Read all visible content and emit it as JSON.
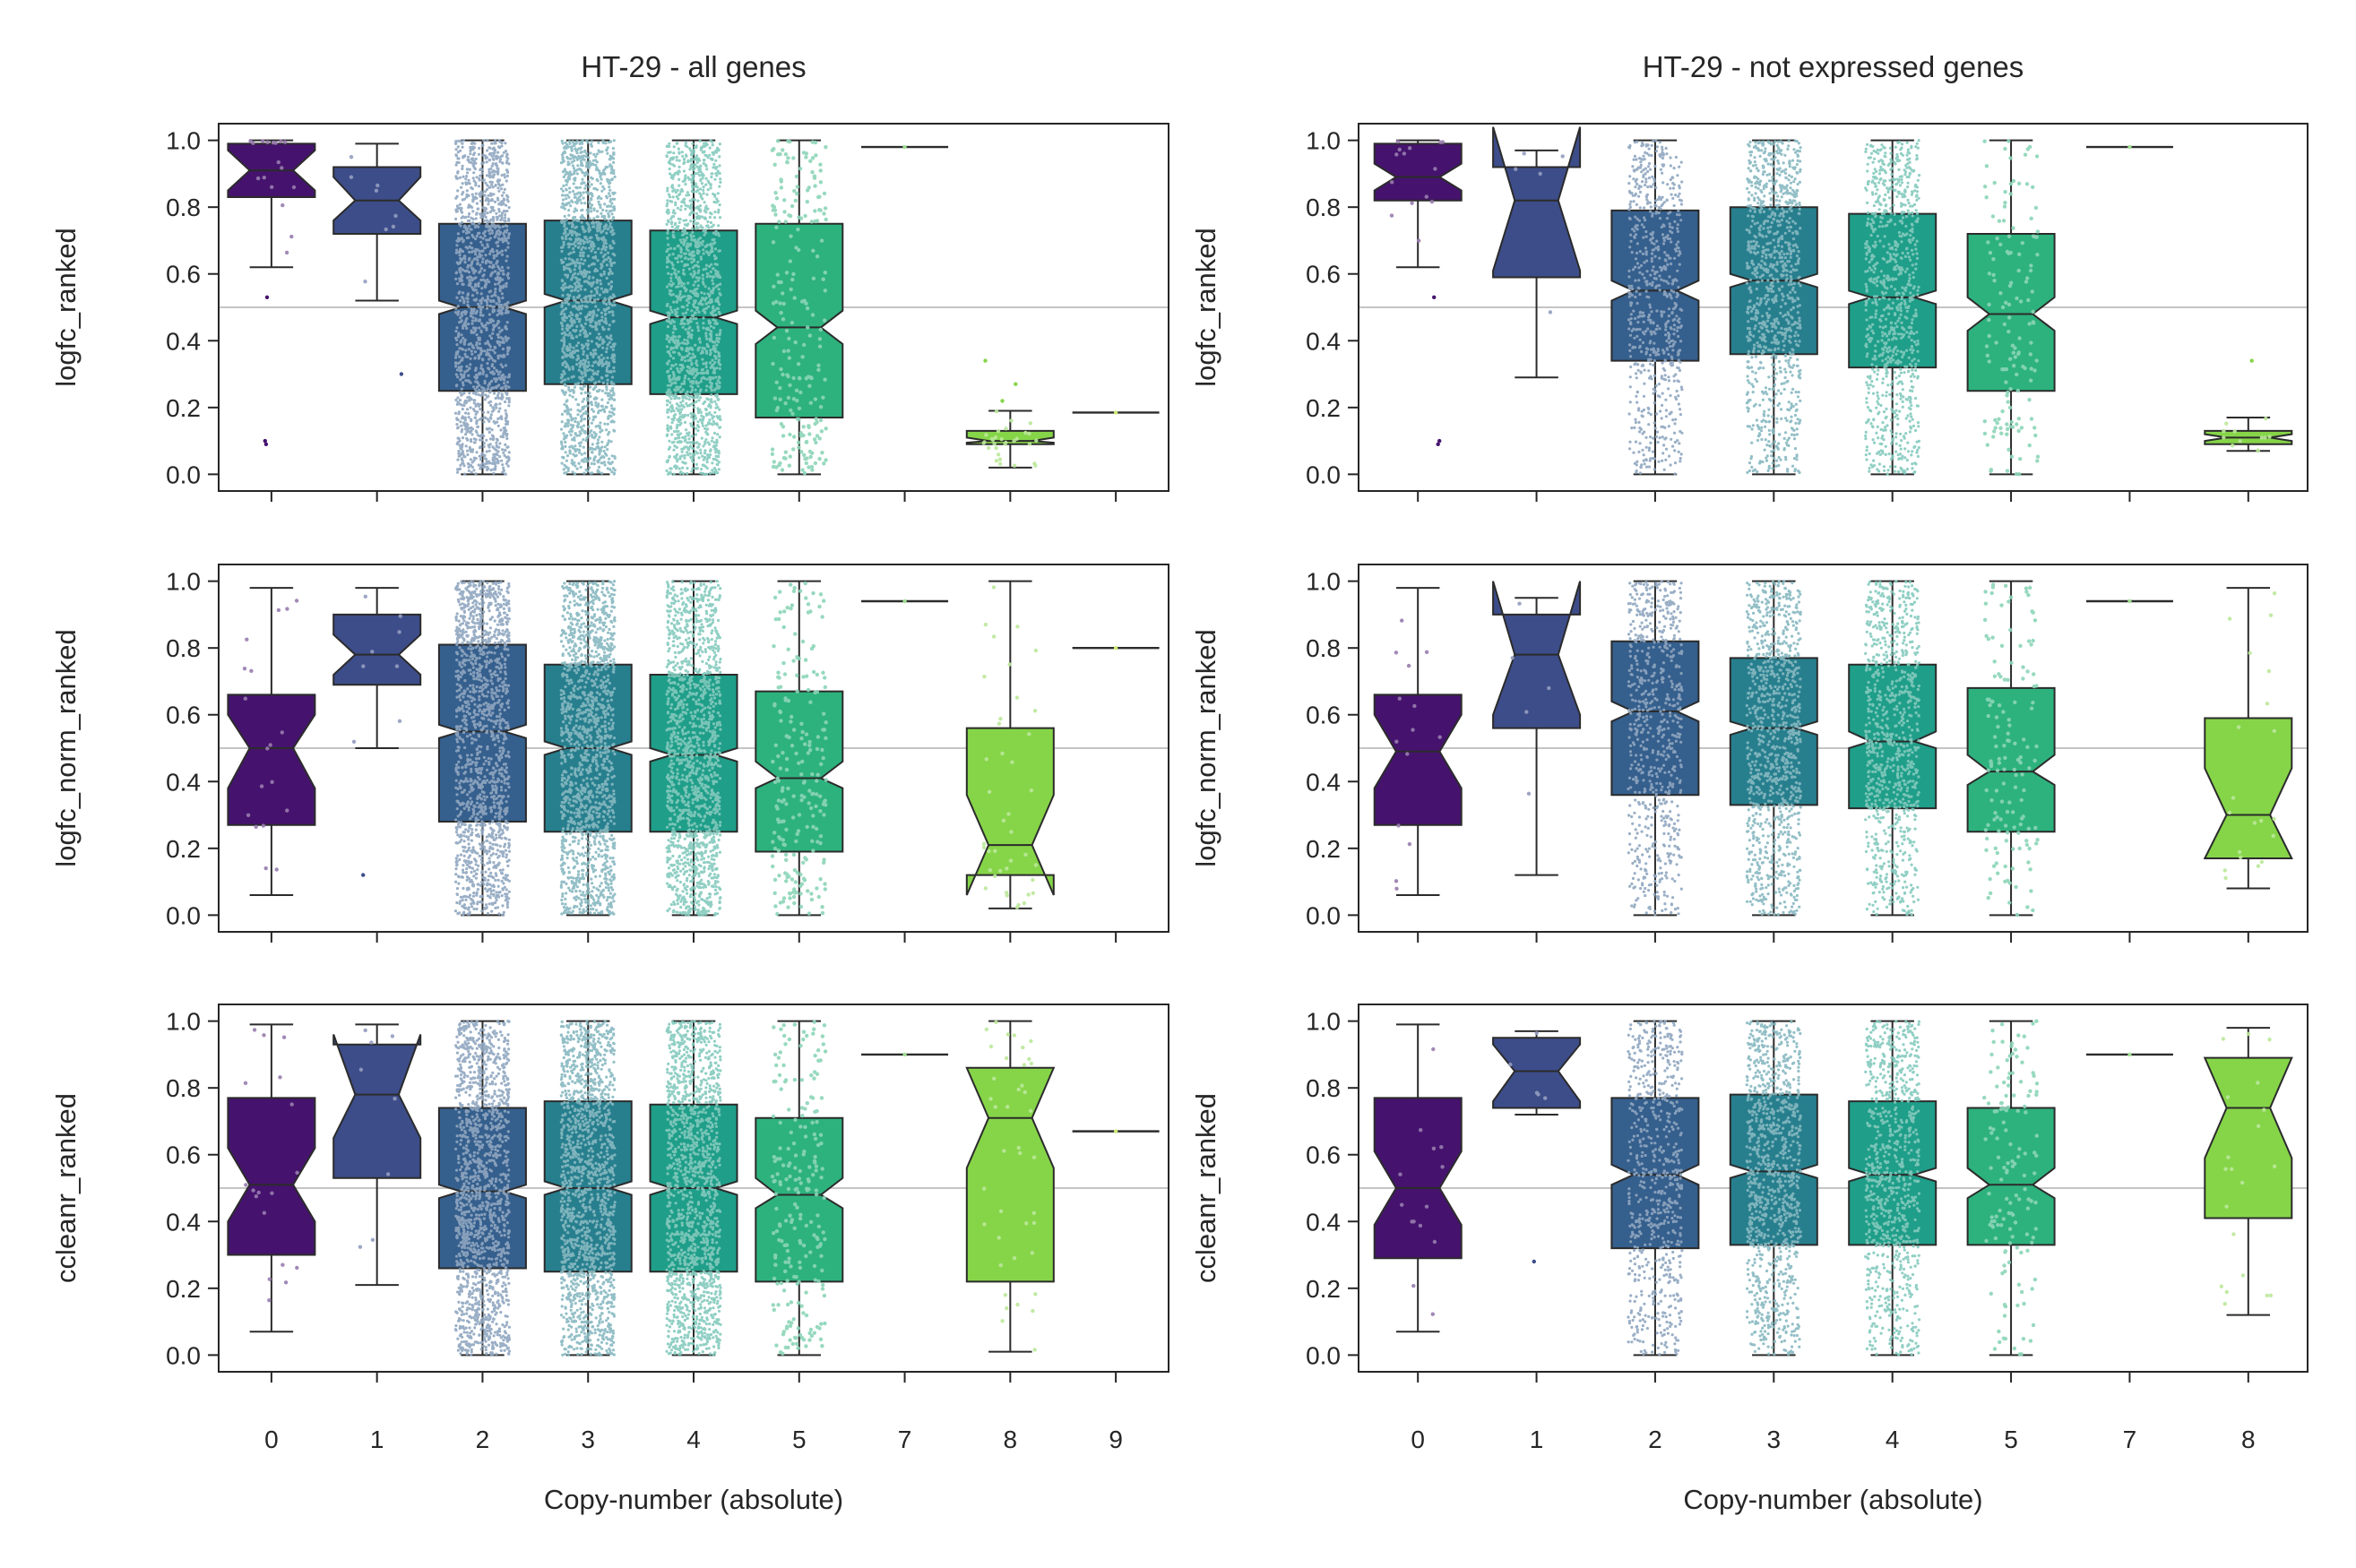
{
  "figure": {
    "palette": [
      "#45136e",
      "#3d4d8a",
      "#355f8d",
      "#277f8e",
      "#1f9e89",
      "#2db27d",
      "#6ece58",
      "#86d549",
      "#b5de2b"
    ],
    "reference_line": 0.5,
    "x_axis_label": "Copy-number (absolute)"
  },
  "chart_data": [
    {
      "type": "box",
      "panel": "row1-left",
      "title": "HT-29 - all genes",
      "ylabel": "logfc_ranked",
      "xlabel": "",
      "ylim": [
        -0.05,
        1.05
      ],
      "yticks": [
        "0.0",
        "0.2",
        "0.4",
        "0.6",
        "0.8",
        "1.0"
      ],
      "categories": [
        "0",
        "1",
        "2",
        "3",
        "4",
        "5",
        "7",
        "8",
        "9"
      ],
      "boxes": [
        {
          "cat": "0",
          "q1": 0.83,
          "med": 0.91,
          "q3": 0.99,
          "wlo": 0.62,
          "whi": 1.0,
          "nlo": 0.85,
          "nhi": 0.97,
          "n": 18,
          "outliers": [
            0.1,
            0.09,
            0.53
          ]
        },
        {
          "cat": "1",
          "q1": 0.72,
          "med": 0.82,
          "q3": 0.92,
          "wlo": 0.52,
          "whi": 0.99,
          "nlo": 0.76,
          "nhi": 0.89,
          "n": 8,
          "outliers": [
            0.3
          ]
        },
        {
          "cat": "2",
          "q1": 0.25,
          "med": 0.5,
          "q3": 0.75,
          "wlo": 0.0,
          "whi": 1.0,
          "nlo": 0.48,
          "nhi": 0.52,
          "n": 1500
        },
        {
          "cat": "3",
          "q1": 0.27,
          "med": 0.52,
          "q3": 0.76,
          "wlo": 0.0,
          "whi": 1.0,
          "nlo": 0.5,
          "nhi": 0.54,
          "n": 1500
        },
        {
          "cat": "4",
          "q1": 0.24,
          "med": 0.47,
          "q3": 0.73,
          "wlo": 0.0,
          "whi": 1.0,
          "nlo": 0.45,
          "nhi": 0.49,
          "n": 1500
        },
        {
          "cat": "5",
          "q1": 0.17,
          "med": 0.44,
          "q3": 0.75,
          "wlo": 0.0,
          "whi": 1.0,
          "nlo": 0.39,
          "nhi": 0.49,
          "n": 220
        },
        {
          "cat": "7",
          "q1": 0.98,
          "med": 0.98,
          "q3": 0.98,
          "wlo": 0.98,
          "whi": 0.98,
          "n": 1
        },
        {
          "cat": "8",
          "q1": 0.09,
          "med": 0.1,
          "q3": 0.13,
          "wlo": 0.02,
          "whi": 0.19,
          "nlo": 0.095,
          "nhi": 0.11,
          "n": 30,
          "outliers": [
            0.34,
            0.27,
            0.22
          ]
        },
        {
          "cat": "9",
          "q1": 0.185,
          "med": 0.185,
          "q3": 0.185,
          "wlo": 0.185,
          "whi": 0.185,
          "n": 1
        }
      ]
    },
    {
      "type": "box",
      "panel": "row1-right",
      "title": "HT-29 - not expressed genes",
      "ylabel": "logfc_ranked",
      "xlabel": "",
      "ylim": [
        -0.05,
        1.05
      ],
      "yticks": [
        "0.0",
        "0.2",
        "0.4",
        "0.6",
        "0.8",
        "1.0"
      ],
      "categories": [
        "0",
        "1",
        "2",
        "3",
        "4",
        "5",
        "7",
        "8"
      ],
      "boxes": [
        {
          "cat": "0",
          "q1": 0.82,
          "med": 0.89,
          "q3": 0.99,
          "wlo": 0.62,
          "whi": 1.0,
          "nlo": 0.85,
          "nhi": 0.93,
          "n": 14,
          "outliers": [
            0.1,
            0.09,
            0.53
          ]
        },
        {
          "cat": "1",
          "q1": 0.59,
          "med": 0.82,
          "q3": 0.92,
          "wlo": 0.29,
          "whi": 0.97,
          "nlo": 0.61,
          "nhi": 1.04,
          "n": 5
        },
        {
          "cat": "2",
          "q1": 0.34,
          "med": 0.55,
          "q3": 0.79,
          "wlo": 0.0,
          "whi": 1.0,
          "nlo": 0.52,
          "nhi": 0.58,
          "n": 700
        },
        {
          "cat": "3",
          "q1": 0.36,
          "med": 0.58,
          "q3": 0.8,
          "wlo": 0.0,
          "whi": 1.0,
          "nlo": 0.56,
          "nhi": 0.6,
          "n": 1000
        },
        {
          "cat": "4",
          "q1": 0.32,
          "med": 0.53,
          "q3": 0.78,
          "wlo": 0.0,
          "whi": 1.0,
          "nlo": 0.51,
          "nhi": 0.55,
          "n": 900
        },
        {
          "cat": "5",
          "q1": 0.25,
          "med": 0.48,
          "q3": 0.72,
          "wlo": 0.0,
          "whi": 1.0,
          "nlo": 0.43,
          "nhi": 0.53,
          "n": 140
        },
        {
          "cat": "7",
          "q1": 0.98,
          "med": 0.98,
          "q3": 0.98,
          "wlo": 0.98,
          "whi": 0.98,
          "n": 1
        },
        {
          "cat": "8",
          "q1": 0.09,
          "med": 0.11,
          "q3": 0.13,
          "wlo": 0.07,
          "whi": 0.17,
          "nlo": 0.1,
          "nhi": 0.12,
          "n": 12,
          "outliers": [
            0.34
          ]
        }
      ]
    },
    {
      "type": "box",
      "panel": "row2-left",
      "title": "",
      "ylabel": "logfc_norm_ranked",
      "xlabel": "",
      "ylim": [
        -0.05,
        1.05
      ],
      "yticks": [
        "0.0",
        "0.2",
        "0.4",
        "0.6",
        "0.8",
        "1.0"
      ],
      "categories": [
        "0",
        "1",
        "2",
        "3",
        "4",
        "5",
        "7",
        "8",
        "9"
      ],
      "boxes": [
        {
          "cat": "0",
          "q1": 0.27,
          "med": 0.5,
          "q3": 0.66,
          "wlo": 0.06,
          "whi": 0.98,
          "nlo": 0.38,
          "nhi": 0.6,
          "n": 18
        },
        {
          "cat": "1",
          "q1": 0.69,
          "med": 0.78,
          "q3": 0.9,
          "wlo": 0.5,
          "whi": 0.98,
          "nlo": 0.72,
          "nhi": 0.84,
          "n": 8,
          "outliers": [
            0.12
          ]
        },
        {
          "cat": "2",
          "q1": 0.28,
          "med": 0.55,
          "q3": 0.81,
          "wlo": 0.0,
          "whi": 1.0,
          "nlo": 0.53,
          "nhi": 0.57,
          "n": 1500
        },
        {
          "cat": "3",
          "q1": 0.25,
          "med": 0.5,
          "q3": 0.75,
          "wlo": 0.0,
          "whi": 1.0,
          "nlo": 0.48,
          "nhi": 0.52,
          "n": 1500
        },
        {
          "cat": "4",
          "q1": 0.25,
          "med": 0.48,
          "q3": 0.72,
          "wlo": 0.0,
          "whi": 1.0,
          "nlo": 0.46,
          "nhi": 0.5,
          "n": 1500
        },
        {
          "cat": "5",
          "q1": 0.19,
          "med": 0.41,
          "q3": 0.67,
          "wlo": 0.0,
          "whi": 1.0,
          "nlo": 0.38,
          "nhi": 0.46,
          "n": 220
        },
        {
          "cat": "7",
          "q1": 0.94,
          "med": 0.94,
          "q3": 0.94,
          "wlo": 0.94,
          "whi": 0.94,
          "n": 1
        },
        {
          "cat": "8",
          "q1": 0.12,
          "med": 0.21,
          "q3": 0.56,
          "wlo": 0.02,
          "whi": 1.0,
          "nlo": 0.06,
          "nhi": 0.36,
          "n": 40
        },
        {
          "cat": "9",
          "q1": 0.8,
          "med": 0.8,
          "q3": 0.8,
          "wlo": 0.8,
          "whi": 0.8,
          "n": 1
        }
      ]
    },
    {
      "type": "box",
      "panel": "row2-right",
      "title": "",
      "ylabel": "logfc_norm_ranked",
      "xlabel": "",
      "ylim": [
        -0.05,
        1.05
      ],
      "yticks": [
        "0.0",
        "0.2",
        "0.4",
        "0.6",
        "0.8",
        "1.0"
      ],
      "categories": [
        "0",
        "1",
        "2",
        "3",
        "4",
        "5",
        "7",
        "8"
      ],
      "boxes": [
        {
          "cat": "0",
          "q1": 0.27,
          "med": 0.49,
          "q3": 0.66,
          "wlo": 0.06,
          "whi": 0.98,
          "nlo": 0.38,
          "nhi": 0.6,
          "n": 14
        },
        {
          "cat": "1",
          "q1": 0.56,
          "med": 0.78,
          "q3": 0.9,
          "wlo": 0.12,
          "whi": 0.95,
          "nlo": 0.6,
          "nhi": 1.0,
          "n": 5
        },
        {
          "cat": "2",
          "q1": 0.36,
          "med": 0.61,
          "q3": 0.82,
          "wlo": 0.0,
          "whi": 1.0,
          "nlo": 0.58,
          "nhi": 0.64,
          "n": 700
        },
        {
          "cat": "3",
          "q1": 0.33,
          "med": 0.56,
          "q3": 0.77,
          "wlo": 0.0,
          "whi": 1.0,
          "nlo": 0.54,
          "nhi": 0.58,
          "n": 1000
        },
        {
          "cat": "4",
          "q1": 0.32,
          "med": 0.52,
          "q3": 0.75,
          "wlo": 0.0,
          "whi": 1.0,
          "nlo": 0.5,
          "nhi": 0.55,
          "n": 900
        },
        {
          "cat": "5",
          "q1": 0.25,
          "med": 0.43,
          "q3": 0.68,
          "wlo": 0.0,
          "whi": 1.0,
          "nlo": 0.39,
          "nhi": 0.48,
          "n": 140
        },
        {
          "cat": "7",
          "q1": 0.94,
          "med": 0.94,
          "q3": 0.94,
          "wlo": 0.94,
          "whi": 0.94,
          "n": 1
        },
        {
          "cat": "8",
          "q1": 0.17,
          "med": 0.3,
          "q3": 0.59,
          "wlo": 0.08,
          "whi": 0.98,
          "nlo": 0.17,
          "nhi": 0.44,
          "n": 20
        }
      ]
    },
    {
      "type": "box",
      "panel": "row3-left",
      "title": "",
      "ylabel": "ccleanr_ranked",
      "xlabel": "Copy-number (absolute)",
      "ylim": [
        -0.05,
        1.05
      ],
      "yticks": [
        "0.0",
        "0.2",
        "0.4",
        "0.6",
        "0.8",
        "1.0"
      ],
      "categories": [
        "0",
        "1",
        "2",
        "3",
        "4",
        "5",
        "7",
        "8",
        "9"
      ],
      "boxes": [
        {
          "cat": "0",
          "q1": 0.3,
          "med": 0.51,
          "q3": 0.77,
          "wlo": 0.07,
          "whi": 0.99,
          "nlo": 0.4,
          "nhi": 0.62,
          "n": 18
        },
        {
          "cat": "1",
          "q1": 0.53,
          "med": 0.78,
          "q3": 0.93,
          "wlo": 0.21,
          "whi": 0.99,
          "nlo": 0.65,
          "nhi": 0.96,
          "n": 8
        },
        {
          "cat": "2",
          "q1": 0.26,
          "med": 0.49,
          "q3": 0.74,
          "wlo": 0.0,
          "whi": 1.0,
          "nlo": 0.47,
          "nhi": 0.51,
          "n": 1500
        },
        {
          "cat": "3",
          "q1": 0.25,
          "med": 0.5,
          "q3": 0.76,
          "wlo": 0.0,
          "whi": 1.0,
          "nlo": 0.48,
          "nhi": 0.52,
          "n": 1500
        },
        {
          "cat": "4",
          "q1": 0.25,
          "med": 0.5,
          "q3": 0.75,
          "wlo": 0.0,
          "whi": 1.0,
          "nlo": 0.48,
          "nhi": 0.52,
          "n": 1500
        },
        {
          "cat": "5",
          "q1": 0.22,
          "med": 0.48,
          "q3": 0.71,
          "wlo": 0.0,
          "whi": 1.0,
          "nlo": 0.44,
          "nhi": 0.53,
          "n": 220
        },
        {
          "cat": "7",
          "q1": 0.9,
          "med": 0.9,
          "q3": 0.9,
          "wlo": 0.9,
          "whi": 0.9,
          "n": 1
        },
        {
          "cat": "8",
          "q1": 0.22,
          "med": 0.71,
          "q3": 0.86,
          "wlo": 0.01,
          "whi": 1.0,
          "nlo": 0.56,
          "nhi": 0.86,
          "n": 40
        },
        {
          "cat": "9",
          "q1": 0.67,
          "med": 0.67,
          "q3": 0.67,
          "wlo": 0.67,
          "whi": 0.67,
          "n": 1
        }
      ]
    },
    {
      "type": "box",
      "panel": "row3-right",
      "title": "",
      "ylabel": "ccleanr_ranked",
      "xlabel": "Copy-number (absolute)",
      "ylim": [
        -0.05,
        1.05
      ],
      "yticks": [
        "0.0",
        "0.2",
        "0.4",
        "0.6",
        "0.8",
        "1.0"
      ],
      "categories": [
        "0",
        "1",
        "2",
        "3",
        "4",
        "5",
        "7",
        "8"
      ],
      "boxes": [
        {
          "cat": "0",
          "q1": 0.29,
          "med": 0.5,
          "q3": 0.77,
          "wlo": 0.07,
          "whi": 0.99,
          "nlo": 0.39,
          "nhi": 0.61,
          "n": 14
        },
        {
          "cat": "1",
          "q1": 0.74,
          "med": 0.85,
          "q3": 0.95,
          "wlo": 0.72,
          "whi": 0.97,
          "nlo": 0.76,
          "nhi": 0.93,
          "n": 5,
          "outliers": [
            0.28
          ]
        },
        {
          "cat": "2",
          "q1": 0.32,
          "med": 0.54,
          "q3": 0.77,
          "wlo": 0.0,
          "whi": 1.0,
          "nlo": 0.51,
          "nhi": 0.57,
          "n": 700
        },
        {
          "cat": "3",
          "q1": 0.33,
          "med": 0.55,
          "q3": 0.78,
          "wlo": 0.0,
          "whi": 1.0,
          "nlo": 0.53,
          "nhi": 0.57,
          "n": 1000
        },
        {
          "cat": "4",
          "q1": 0.33,
          "med": 0.54,
          "q3": 0.76,
          "wlo": 0.0,
          "whi": 1.0,
          "nlo": 0.52,
          "nhi": 0.56,
          "n": 900
        },
        {
          "cat": "5",
          "q1": 0.33,
          "med": 0.51,
          "q3": 0.74,
          "wlo": 0.0,
          "whi": 1.0,
          "nlo": 0.47,
          "nhi": 0.56,
          "n": 140
        },
        {
          "cat": "7",
          "q1": 0.9,
          "med": 0.9,
          "q3": 0.9,
          "wlo": 0.9,
          "whi": 0.9,
          "n": 1
        },
        {
          "cat": "8",
          "q1": 0.41,
          "med": 0.74,
          "q3": 0.89,
          "wlo": 0.12,
          "whi": 0.98,
          "nlo": 0.59,
          "nhi": 0.89,
          "n": 20
        }
      ]
    }
  ]
}
